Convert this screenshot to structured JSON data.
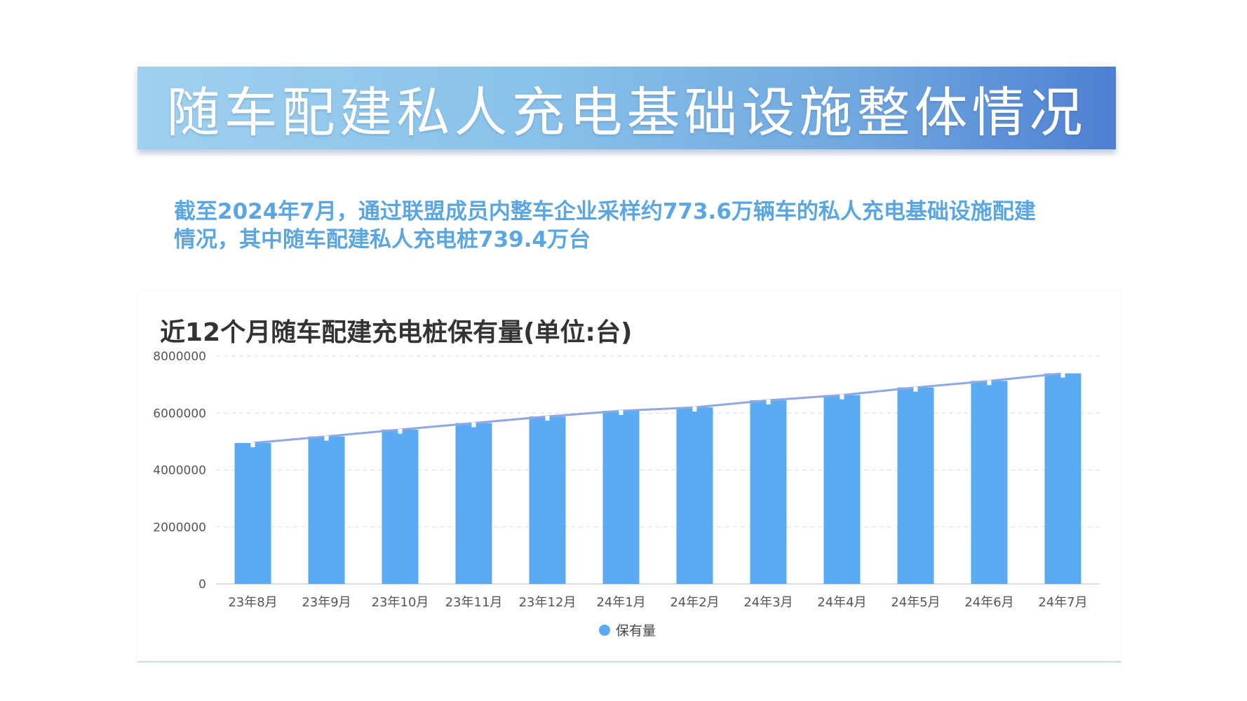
{
  "page": {
    "banner_title": "随车配建私人充电基础设施整体情况",
    "summary_line1": "截至2024年7月，通过联盟成员内整车企业采样约773.6万辆车的私人充电基础设施配建",
    "summary_line2": "情况，其中随车配建私人充电桩739.4万台"
  },
  "chart_data": {
    "type": "bar",
    "title": "近12个月随车配建充电桩保有量(单位:台)",
    "categories": [
      "23年8月",
      "23年9月",
      "23年10月",
      "23年11月",
      "23年12月",
      "24年1月",
      "24年2月",
      "24年3月",
      "24年4月",
      "24年5月",
      "24年6月",
      "24年7月"
    ],
    "series": [
      {
        "name": "保有量",
        "values": [
          4950000,
          5180000,
          5420000,
          5650000,
          5880000,
          6080000,
          6200000,
          6450000,
          6630000,
          6900000,
          7130000,
          7394000
        ]
      }
    ],
    "ylim": [
      0,
      8000000
    ],
    "yticks": [
      "0",
      "2000000",
      "4000000",
      "6000000",
      "8000000"
    ],
    "bar_color": "#5aabf2",
    "trend_line_color": "#8fa7e4",
    "grid": true,
    "legend": "bottom-center"
  }
}
